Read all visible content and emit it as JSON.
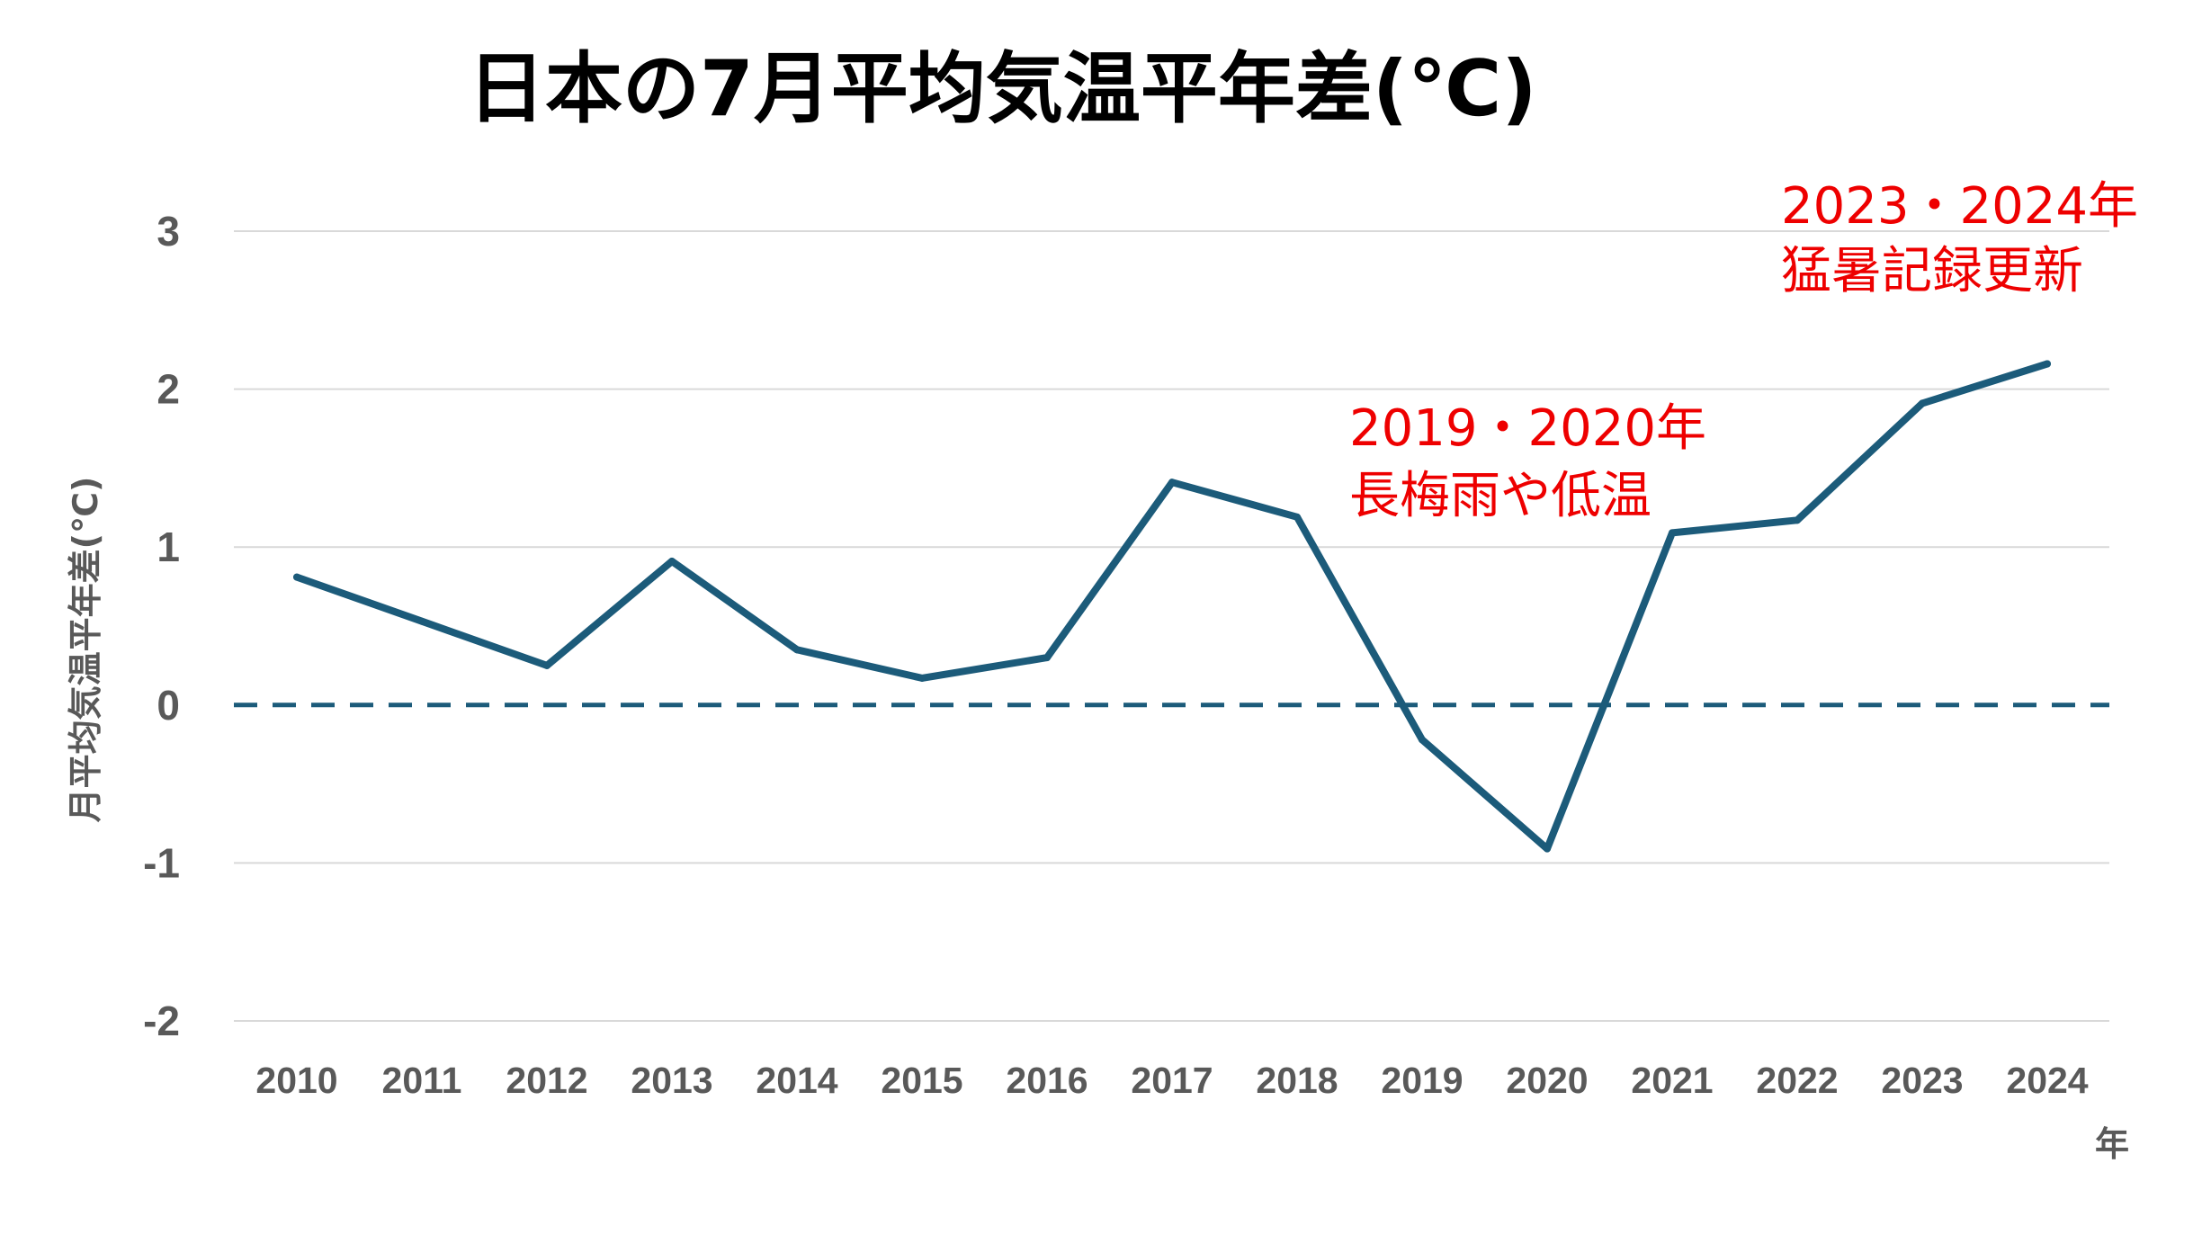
{
  "chart_data": {
    "type": "line",
    "title": "日本の7月平均気温平年差(℃)",
    "xlabel": "年",
    "ylabel": "月平均気温平年差(℃)",
    "ylim": [
      -2,
      3
    ],
    "yticks": [
      "3",
      "2",
      "1",
      "0",
      "-1",
      "-2"
    ],
    "ytick_values": [
      3,
      2,
      1,
      0,
      -1,
      -2
    ],
    "grid": true,
    "categories": [
      "2010",
      "2011",
      "2012",
      "2013",
      "2014",
      "2015",
      "2016",
      "2017",
      "2018",
      "2019",
      "2020",
      "2021",
      "2022",
      "2023",
      "2024"
    ],
    "series": [
      {
        "values": [
          0.81,
          0.53,
          0.25,
          0.91,
          0.35,
          0.17,
          0.3,
          1.41,
          1.19,
          -0.22,
          -0.91,
          1.09,
          1.17,
          1.91,
          2.16
        ],
        "color": "#1c5b7a"
      }
    ],
    "reference_line": {
      "value": 0,
      "style": "dashed",
      "color": "#1c5b7a"
    },
    "annotations": [
      {
        "line1": "2019・2020年",
        "line2": "長梅雨や低温",
        "near": "2019",
        "color": "#ee0000"
      },
      {
        "line1": "2023・2024年",
        "line2": "猛暑記録更新",
        "near": "2023",
        "color": "#ee0000"
      }
    ]
  }
}
